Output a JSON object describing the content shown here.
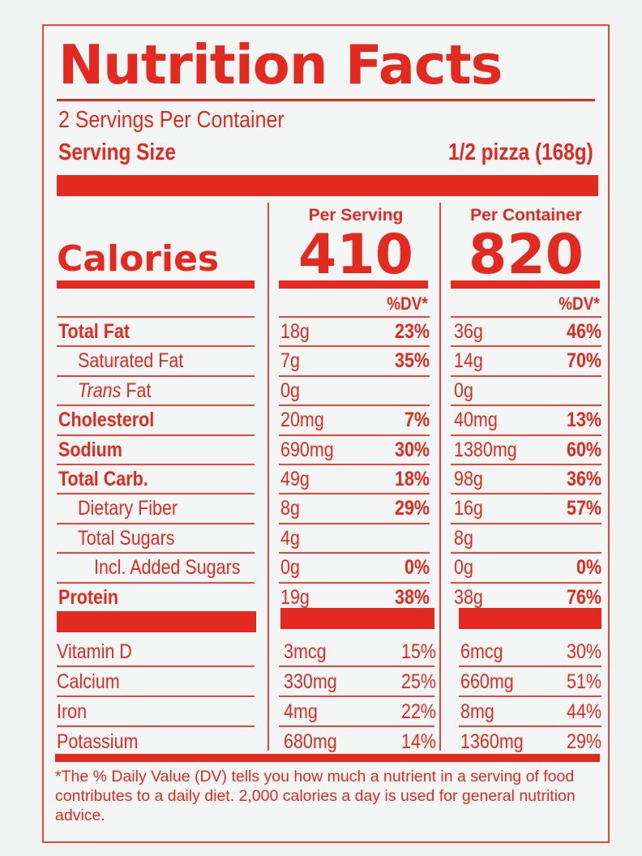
{
  "title": "Nutrition Facts",
  "servings_per_container": "2 Servings Per Container",
  "serving_size_label": "Serving Size",
  "serving_size_value": "1/2 pizza (168g)",
  "col_per_serving": "Per Serving",
  "col_per_container": "Per Container",
  "calories_label": "Calories",
  "calories_per_serving": "410",
  "calories_per_container": "820",
  "dv_header": "%DV*",
  "nutrients": [
    {
      "name": "Total Fat",
      "bold": true,
      "italic_prefix": "",
      "indent": 0,
      "s_amt": "18g",
      "s_pct": "23%",
      "c_amt": "36g",
      "c_pct": "46%"
    },
    {
      "name": "Saturated Fat",
      "bold": false,
      "italic_prefix": "",
      "indent": 1,
      "s_amt": "7g",
      "s_pct": "35%",
      "c_amt": "14g",
      "c_pct": "70%"
    },
    {
      "name": "Fat",
      "bold": false,
      "italic_prefix": "Trans",
      "indent": 1,
      "s_amt": "0g",
      "s_pct": "",
      "c_amt": "0g",
      "c_pct": ""
    },
    {
      "name": "Cholesterol",
      "bold": true,
      "italic_prefix": "",
      "indent": 0,
      "s_amt": "20mg",
      "s_pct": "7%",
      "c_amt": "40mg",
      "c_pct": "13%"
    },
    {
      "name": "Sodium",
      "bold": true,
      "italic_prefix": "",
      "indent": 0,
      "s_amt": "690mg",
      "s_pct": "30%",
      "c_amt": "1380mg",
      "c_pct": "60%"
    },
    {
      "name": "Total Carb.",
      "bold": true,
      "italic_prefix": "",
      "indent": 0,
      "s_amt": "49g",
      "s_pct": "18%",
      "c_amt": "98g",
      "c_pct": "36%"
    },
    {
      "name": "Dietary Fiber",
      "bold": false,
      "italic_prefix": "",
      "indent": 1,
      "s_amt": "8g",
      "s_pct": "29%",
      "c_amt": "16g",
      "c_pct": "57%"
    },
    {
      "name": "Total Sugars",
      "bold": false,
      "italic_prefix": "",
      "indent": 1,
      "s_amt": "4g",
      "s_pct": "",
      "c_amt": "8g",
      "c_pct": ""
    },
    {
      "name": "Incl. Added Sugars",
      "bold": false,
      "italic_prefix": "",
      "indent": 2,
      "s_amt": "0g",
      "s_pct": "0%",
      "c_amt": "0g",
      "c_pct": "0%"
    },
    {
      "name": "Protein",
      "bold": true,
      "italic_prefix": "",
      "indent": 0,
      "s_amt": "19g",
      "s_pct": "38%",
      "c_amt": "38g",
      "c_pct": "76%"
    }
  ],
  "vitamins": [
    {
      "name": "Vitamin D",
      "s_amt": "3mcg",
      "s_pct": "15%",
      "c_amt": "6mcg",
      "c_pct": "30%"
    },
    {
      "name": "Calcium",
      "s_amt": "330mg",
      "s_pct": "25%",
      "c_amt": "660mg",
      "c_pct": "51%"
    },
    {
      "name": "Iron",
      "s_amt": "4mg",
      "s_pct": "22%",
      "c_amt": "8mg",
      "c_pct": "44%"
    },
    {
      "name": "Potassium",
      "s_amt": "680mg",
      "s_pct": "14%",
      "c_amt": "1360mg",
      "c_pct": "29%"
    }
  ],
  "footnote": "*The % Daily Value (DV) tells you how much a nutrient in a serving of food contributes to a daily diet. 2,000 calories a day is used for general nutrition advice.",
  "colors": {
    "label_red": "#e32a20",
    "background": "#f1f3f2"
  }
}
